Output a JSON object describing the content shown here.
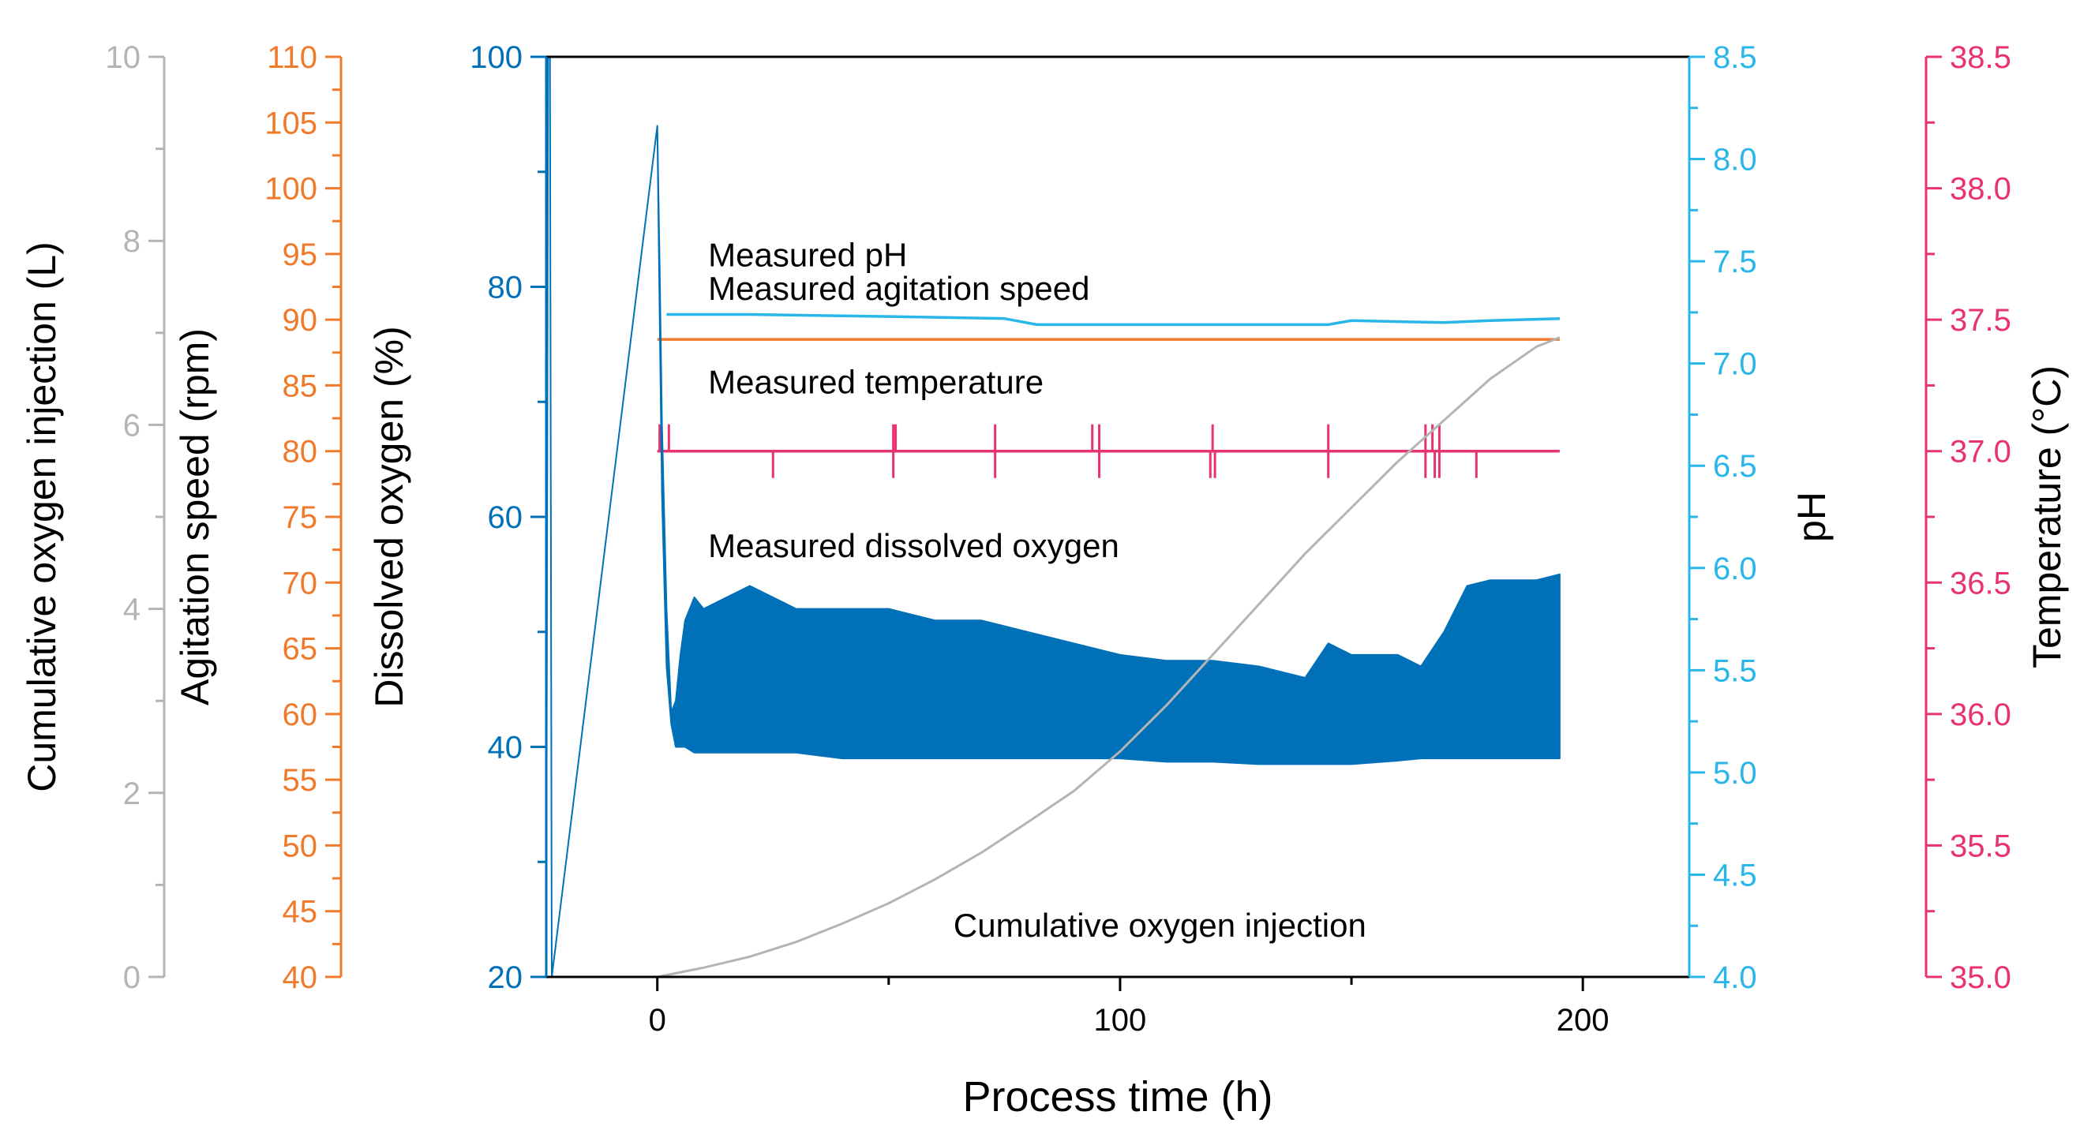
{
  "chart_data": {
    "type": "line",
    "xlabel": "Process time (h)",
    "x_ticks": [
      0,
      100,
      200
    ],
    "xlim": [
      -24,
      223
    ],
    "axes": {
      "o2": {
        "label": "Cumulative oxygen injection (L)",
        "ylim": [
          0,
          10
        ],
        "major": [
          0,
          2,
          4,
          6,
          8,
          10
        ],
        "minor_step": 1,
        "color": "#b4b4b4",
        "labels_color": "#b4b4b4"
      },
      "agit": {
        "label": "Agitation speed (rpm)",
        "ylim": [
          40,
          110
        ],
        "major": [
          40,
          45,
          50,
          55,
          60,
          65,
          70,
          75,
          80,
          85,
          90,
          95,
          100,
          105,
          110
        ],
        "minor_step": 2.5,
        "color": "#f07a2c",
        "labels_color": "#f07a2c"
      },
      "do": {
        "label": "Dissolved oxygen (%)",
        "ylim": [
          20,
          100
        ],
        "major": [
          20,
          40,
          60,
          80,
          100
        ],
        "minor_step": 10,
        "color": "#0070b8",
        "labels_color": "#0070b8"
      },
      "ph": {
        "label": "pH",
        "ylim": [
          4.0,
          8.5
        ],
        "major": [
          "4.0",
          "4.5",
          "5.0",
          "5.5",
          "6.0",
          "6.5",
          "7.0",
          "7.5",
          "8.0",
          "8.5"
        ],
        "minor_step": 0.25,
        "color": "#29b6e8",
        "labels_color": "#29b6e8"
      },
      "temp": {
        "label": "Temperature (°C)",
        "ylim": [
          35.0,
          38.5
        ],
        "major": [
          "35.0",
          "35.5",
          "36.0",
          "36.5",
          "37.0",
          "37.5",
          "38.0",
          "38.5"
        ],
        "minor_step": 0.25,
        "color": "#e8336e",
        "labels_color": "#e8336e"
      }
    },
    "series": [
      {
        "name": "Measured agitation speed",
        "axis": "agit",
        "color": "#f07a2c",
        "x": [
          0,
          195
        ],
        "y": [
          88.5,
          88.5
        ]
      },
      {
        "name": "Measured pH",
        "axis": "ph",
        "color": "#29b6e8",
        "x": [
          2,
          20,
          50,
          75,
          82,
          100,
          130,
          145,
          150,
          170,
          180,
          195
        ],
        "y": [
          7.24,
          7.24,
          7.23,
          7.22,
          7.19,
          7.19,
          7.19,
          7.19,
          7.21,
          7.2,
          7.21,
          7.22
        ]
      },
      {
        "name": "Measured temperature",
        "axis": "temp",
        "color": "#e8336e",
        "x": [
          0,
          195
        ],
        "y": [
          37.0,
          37.0
        ],
        "spikes_up": [
          0.5,
          2.5,
          51,
          51.5,
          73,
          94,
          95.5,
          120,
          145,
          166,
          167.5,
          169
        ],
        "spikes_down": [
          25,
          51,
          73,
          95.5,
          119.5,
          120.5,
          145,
          166,
          168,
          169,
          177
        ]
      },
      {
        "name": "Measured dissolved oxygen",
        "axis": "do",
        "color": "#0070b8",
        "x": [
          -24,
          -23.6,
          -23.2,
          -22.8,
          0,
          0.5,
          1,
          2,
          3,
          4,
          5,
          6,
          8,
          10,
          15,
          20,
          30,
          40,
          50,
          60,
          70,
          80,
          90,
          100,
          110,
          120,
          130,
          140,
          145,
          150,
          160,
          165,
          170,
          175,
          180,
          190,
          195
        ],
        "upper": [
          20,
          100,
          100,
          20,
          94,
          82,
          68,
          52,
          43,
          44,
          48,
          51,
          53,
          52,
          53,
          54,
          52,
          52,
          52,
          51,
          51,
          50,
          49,
          48,
          47.5,
          47.5,
          47,
          46,
          49,
          48,
          48,
          47,
          50,
          54,
          54.5,
          54.5,
          55
        ],
        "lower": [
          20,
          100,
          100,
          20,
          94,
          78,
          62,
          47,
          42,
          40,
          40,
          40,
          39.5,
          39.5,
          39.5,
          39.5,
          39.5,
          39,
          39,
          39,
          39,
          39,
          39,
          39,
          38.7,
          38.7,
          38.5,
          38.5,
          38.5,
          38.5,
          38.8,
          39,
          39,
          39,
          39,
          39,
          39
        ]
      },
      {
        "name": "Cumulative oxygen injection",
        "axis": "o2",
        "color": "#b4b4b4",
        "x": [
          0,
          10,
          20,
          30,
          40,
          50,
          60,
          70,
          80,
          90,
          100,
          110,
          120,
          130,
          140,
          150,
          160,
          170,
          180,
          190,
          195
        ],
        "y": [
          0.0,
          0.1,
          0.22,
          0.38,
          0.58,
          0.8,
          1.06,
          1.35,
          1.68,
          2.02,
          2.45,
          2.95,
          3.5,
          4.05,
          4.6,
          5.1,
          5.6,
          6.05,
          6.5,
          6.85,
          6.95
        ]
      }
    ],
    "annotations": [
      {
        "text": "Measured agitation speed",
        "x": 11,
        "axis": "agit",
        "y": 91.5
      },
      {
        "text": "Measured pH",
        "x": 11,
        "axis": "do",
        "y": 81.8
      },
      {
        "text": "Measured temperature",
        "x": 11,
        "axis": "temp",
        "y": 37.22
      },
      {
        "text": "Measured dissolved oxygen",
        "x": 11,
        "axis": "do",
        "y": 56.5
      },
      {
        "text": "Cumulative oxygen injection",
        "x": 64,
        "axis": "do",
        "y": 23.5
      }
    ]
  }
}
